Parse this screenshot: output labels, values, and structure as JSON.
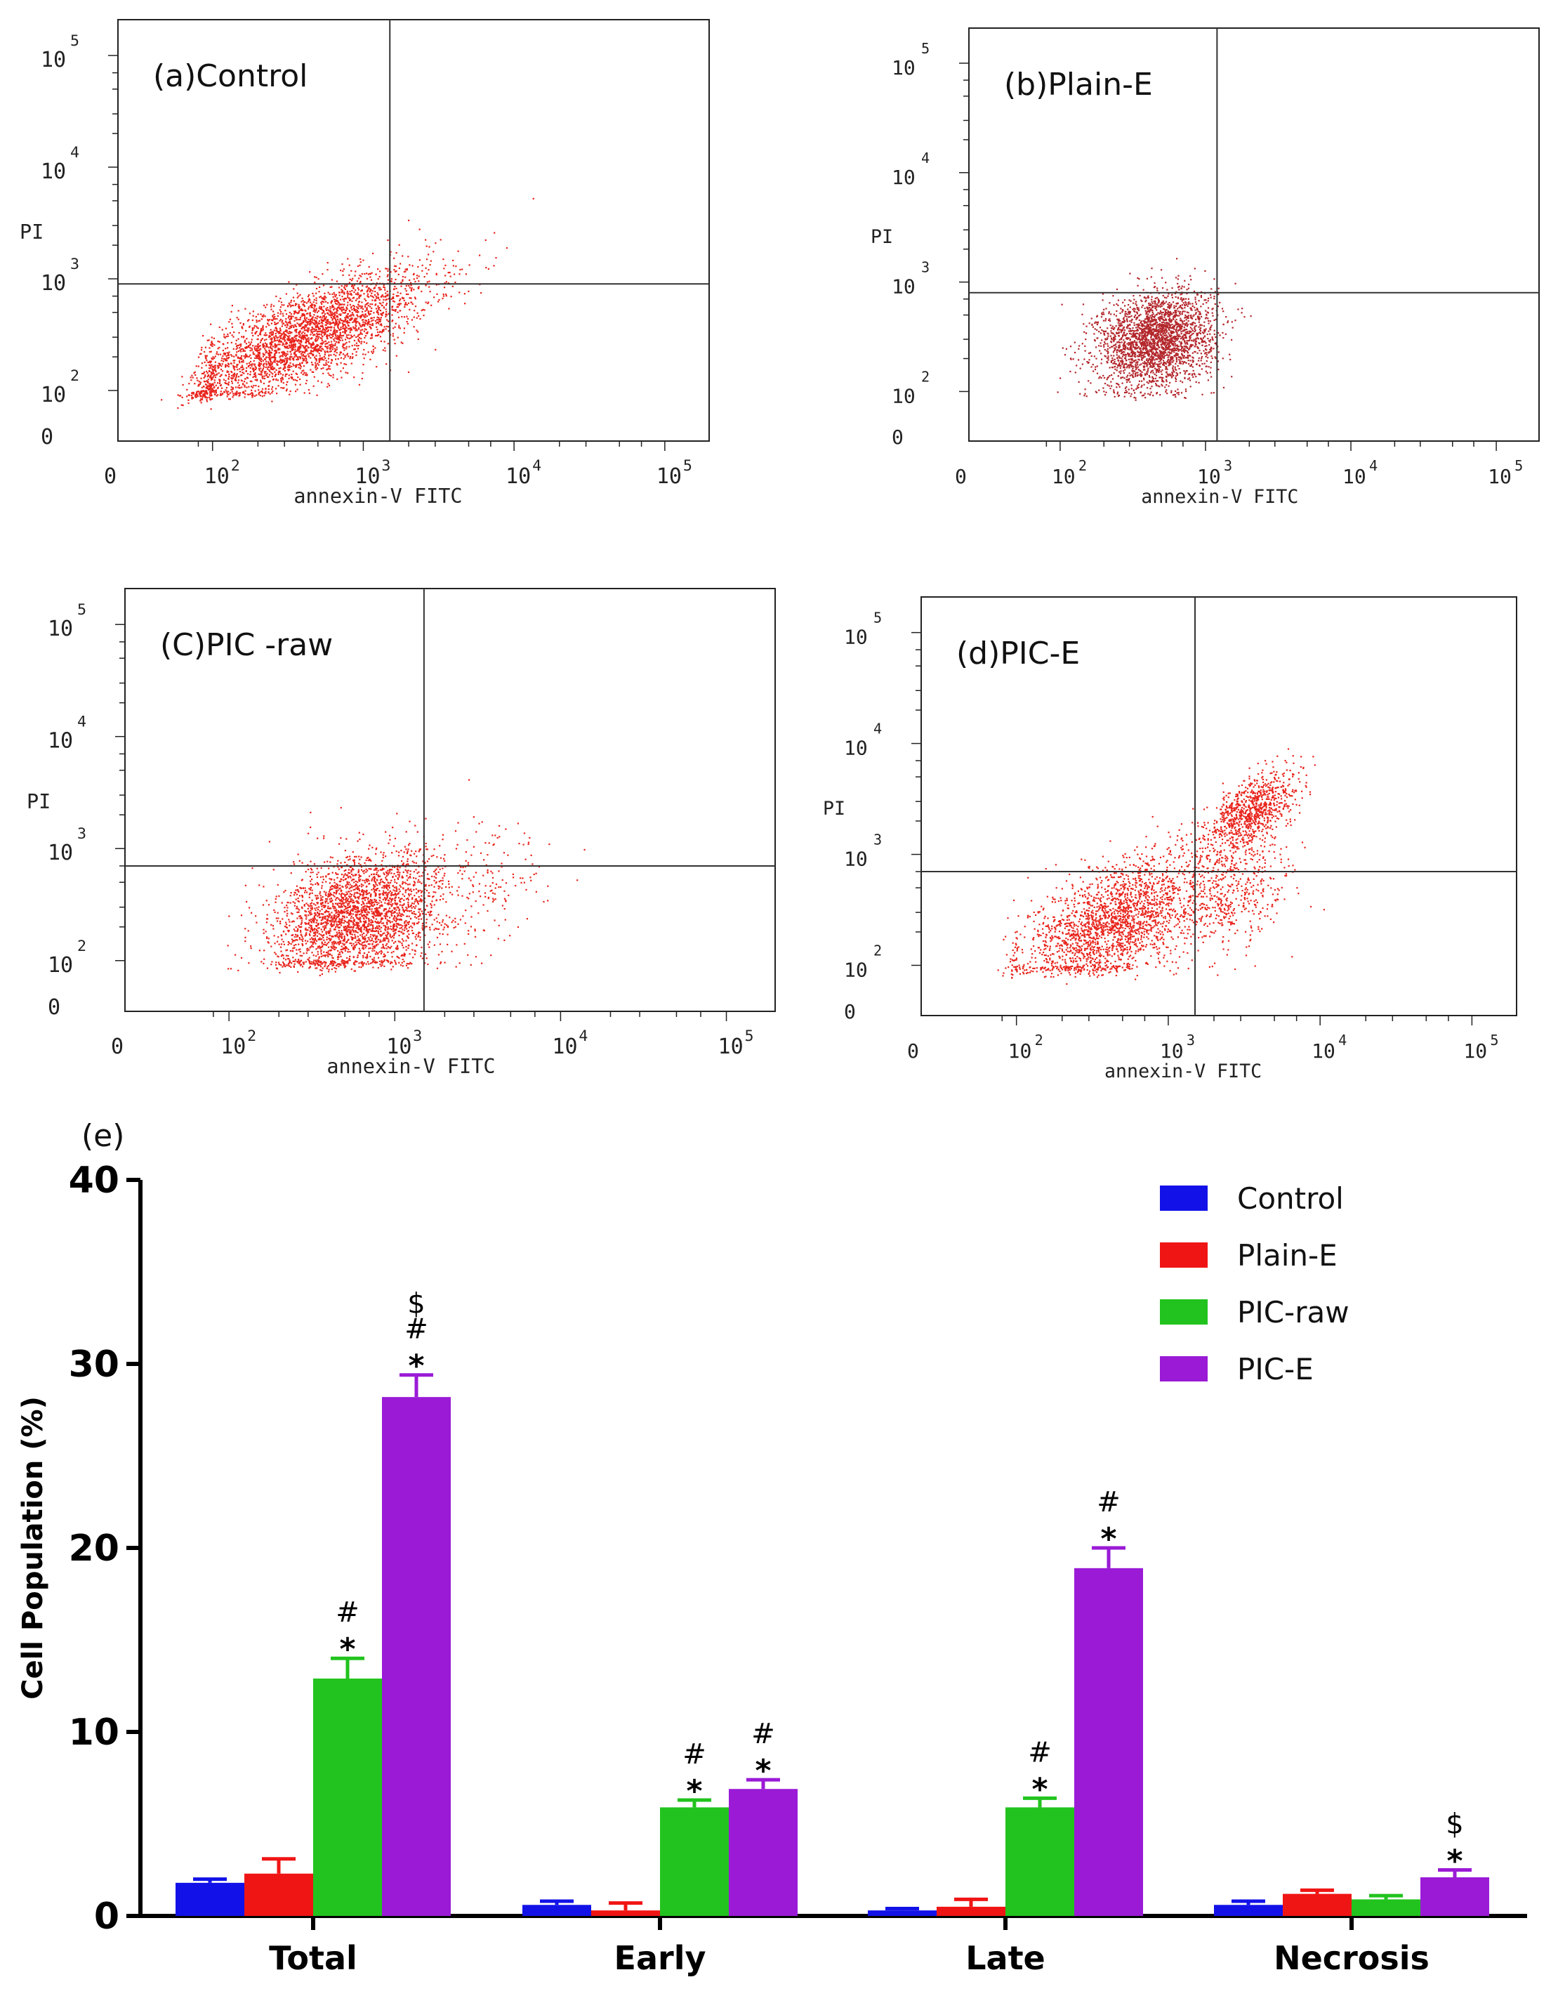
{
  "chart_data": [
    {
      "type": "scatter",
      "title": "(a)Control",
      "xlabel": "annexin-V FITC",
      "ylabel": "PI",
      "x_ticks": [
        "0",
        "10",
        "10",
        "10",
        "10"
      ],
      "x_exps": [
        "",
        "2",
        "3",
        "4",
        "5"
      ],
      "y_ticks": [
        "0",
        "10",
        "10",
        "10",
        "10"
      ],
      "y_exps": [
        "",
        "2",
        "3",
        "4",
        "5"
      ],
      "gate": {
        "x": 1500,
        "y": 900
      },
      "marker_color": "#e8241c",
      "clusters": [
        {
          "cx": 400,
          "cy": 300,
          "sx": 0.42,
          "sy": 0.3,
          "rho": 0.75,
          "n": 3200
        }
      ]
    },
    {
      "type": "scatter",
      "title": "(b)Plain-E",
      "xlabel": "annexin-V FITC",
      "ylabel": "PI",
      "x_ticks": [
        "0",
        "10",
        "10",
        "10",
        "10"
      ],
      "x_exps": [
        "",
        "2",
        "3",
        "4",
        "5"
      ],
      "y_ticks": [
        "0",
        "10",
        "10",
        "10",
        "10"
      ],
      "y_exps": [
        "",
        "2",
        "3",
        "4",
        "5"
      ],
      "gate": {
        "x": 1200,
        "y": 800
      },
      "marker_color": "#b3262b",
      "clusters": [
        {
          "cx": 450,
          "cy": 300,
          "sx": 0.2,
          "sy": 0.22,
          "rho": 0.2,
          "n": 2600
        }
      ]
    },
    {
      "type": "scatter",
      "title": "(C)PIC -raw",
      "xlabel": "annexin-V FITC",
      "ylabel": "PI",
      "x_ticks": [
        "0",
        "10",
        "10",
        "10",
        "10"
      ],
      "x_exps": [
        "",
        "2",
        "3",
        "4",
        "5"
      ],
      "y_ticks": [
        "0",
        "10",
        "10",
        "10",
        "10"
      ],
      "y_exps": [
        "",
        "2",
        "3",
        "4",
        "5"
      ],
      "gate": {
        "x": 1500,
        "y": 700
      },
      "marker_color": "#e8241c",
      "clusters": [
        {
          "cx": 600,
          "cy": 250,
          "sx": 0.25,
          "sy": 0.28,
          "rho": 0.3,
          "n": 2800
        },
        {
          "cx": 2800,
          "cy": 500,
          "sx": 0.25,
          "sy": 0.3,
          "rho": 0.2,
          "n": 200
        }
      ]
    },
    {
      "type": "scatter",
      "title": "(d)PIC-E",
      "xlabel": "annexin-V FITC",
      "ylabel": "PI",
      "x_ticks": [
        "0",
        "10",
        "10",
        "10",
        "10"
      ],
      "x_exps": [
        "",
        "2",
        "3",
        "4",
        "5"
      ],
      "y_ticks": [
        "0",
        "10",
        "10",
        "10",
        "10"
      ],
      "y_exps": [
        "",
        "2",
        "3",
        "4",
        "5"
      ],
      "gate": {
        "x": 1500,
        "y": 700
      },
      "marker_color": "#e8241c",
      "clusters": [
        {
          "cx": 450,
          "cy": 250,
          "sx": 0.3,
          "sy": 0.3,
          "rho": 0.55,
          "n": 2200
        },
        {
          "cx": 3500,
          "cy": 2500,
          "sx": 0.15,
          "sy": 0.18,
          "rho": 0.6,
          "n": 900
        },
        {
          "cx": 2500,
          "cy": 450,
          "sx": 0.2,
          "sy": 0.3,
          "rho": 0.3,
          "n": 500
        }
      ]
    },
    {
      "type": "bar",
      "panel_label": "(e)",
      "categories": [
        "Total",
        "Early",
        "Late",
        "Necrosis"
      ],
      "ylabel": "Cell Population (%)",
      "ylim": [
        0,
        40
      ],
      "yticks": [
        "0",
        "10",
        "20",
        "30",
        "40"
      ],
      "series": [
        {
          "name": "Control",
          "color": "#1212e8",
          "values": [
            1.8,
            0.6,
            0.3,
            0.6
          ],
          "errors": [
            0.2,
            0.2,
            0.1,
            0.2
          ],
          "annotations": [
            "",
            "",
            "",
            ""
          ]
        },
        {
          "name": "Plain-E",
          "color": "#f01515",
          "values": [
            2.3,
            0.3,
            0.5,
            1.2
          ],
          "errors": [
            0.8,
            0.4,
            0.4,
            0.2
          ],
          "annotations": [
            "",
            "",
            "",
            ""
          ]
        },
        {
          "name": "PIC-raw",
          "color": "#22c31e",
          "values": [
            12.9,
            5.9,
            5.9,
            0.9
          ],
          "errors": [
            1.1,
            0.4,
            0.5,
            0.2
          ],
          "annotations": [
            "*#",
            "*#",
            "*#",
            ""
          ]
        },
        {
          "name": "PIC-E",
          "color": "#9a1ad6",
          "values": [
            28.2,
            6.9,
            18.9,
            2.1
          ],
          "errors": [
            1.2,
            0.5,
            1.1,
            0.4
          ],
          "annotations": [
            "*#$",
            "*#",
            "*#",
            "*$"
          ]
        }
      ]
    }
  ]
}
